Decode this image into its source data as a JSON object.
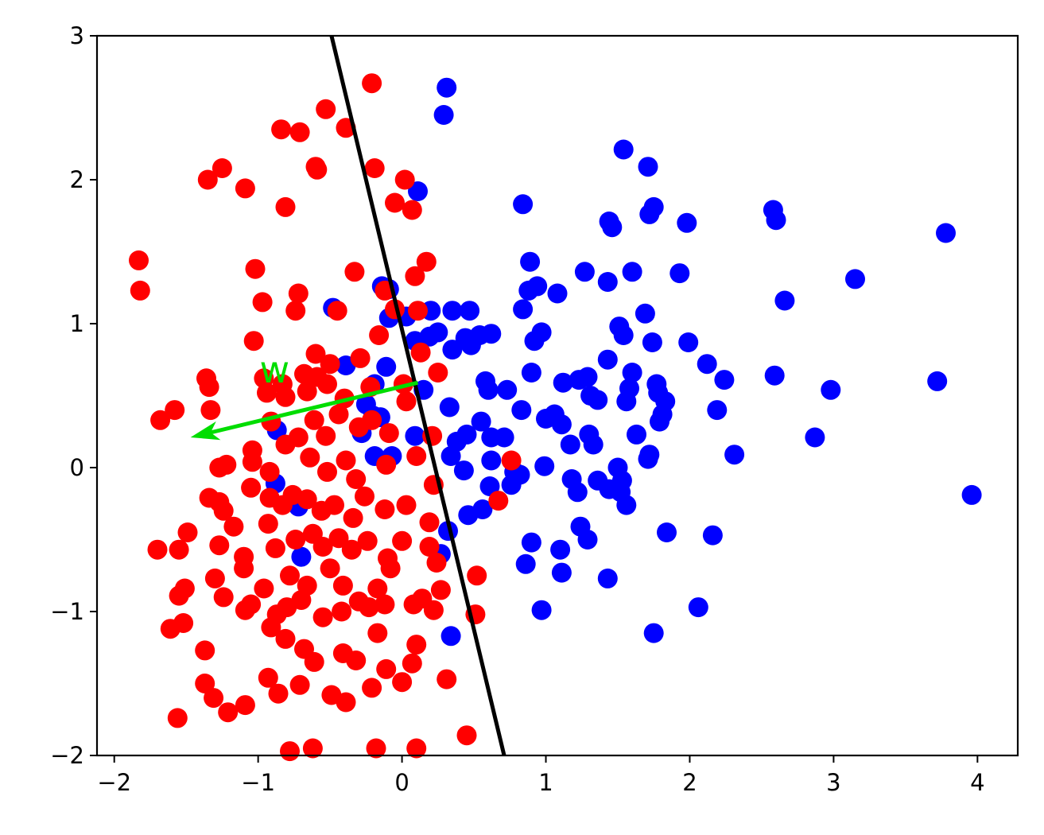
{
  "chart_data": {
    "type": "scatter",
    "title": "",
    "xlabel": "",
    "ylabel": "",
    "xlim": [
      -2.12,
      4.28
    ],
    "ylim": [
      -2,
      3
    ],
    "xticks": [
      -2,
      -1,
      0,
      1,
      2,
      3,
      4
    ],
    "yticks": [
      -2,
      -1,
      0,
      1,
      2,
      3
    ],
    "xtick_labels": [
      "−2",
      "−1",
      "0",
      "1",
      "2",
      "3",
      "4"
    ],
    "ytick_labels": [
      "−2",
      "−1",
      "0",
      "1",
      "2",
      "3"
    ],
    "grid": false,
    "series": [
      {
        "color": "#0000ff",
        "points": [
          [
            0.31,
            2.64
          ],
          [
            0.29,
            2.45
          ],
          [
            0.11,
            1.92
          ],
          [
            0.84,
            1.83
          ],
          [
            1.54,
            2.21
          ],
          [
            1.71,
            2.09
          ],
          [
            1.44,
            1.71
          ],
          [
            1.46,
            1.67
          ],
          [
            1.72,
            1.76
          ],
          [
            1.75,
            1.81
          ],
          [
            1.98,
            1.7
          ],
          [
            2.58,
            1.79
          ],
          [
            2.6,
            1.72
          ],
          [
            3.78,
            1.63
          ],
          [
            0.89,
            1.43
          ],
          [
            1.27,
            1.36
          ],
          [
            1.43,
            1.29
          ],
          [
            1.6,
            1.36
          ],
          [
            1.93,
            1.35
          ],
          [
            3.15,
            1.31
          ],
          [
            0.88,
            1.23
          ],
          [
            0.94,
            1.26
          ],
          [
            1.08,
            1.21
          ],
          [
            2.66,
            1.16
          ],
          [
            0.84,
            1.1
          ],
          [
            1.69,
            1.07
          ],
          [
            0.35,
            1.09
          ],
          [
            0.47,
            1.09
          ],
          [
            0.2,
            1.09
          ],
          [
            0.03,
            1.05
          ],
          [
            -0.48,
            1.11
          ],
          [
            -0.09,
            1.24
          ],
          [
            -0.14,
            1.26
          ],
          [
            -0.09,
            1.04
          ],
          [
            0.19,
            0.91
          ],
          [
            0.25,
            0.94
          ],
          [
            0.54,
            0.92
          ],
          [
            0.62,
            0.93
          ],
          [
            0.44,
            0.9
          ],
          [
            0.48,
            0.85
          ],
          [
            0.35,
            0.82
          ],
          [
            0.97,
            0.94
          ],
          [
            0.92,
            0.88
          ],
          [
            1.51,
            0.98
          ],
          [
            1.54,
            0.92
          ],
          [
            1.74,
            0.87
          ],
          [
            1.99,
            0.87
          ],
          [
            1.43,
            0.75
          ],
          [
            0.09,
            0.88
          ],
          [
            -0.11,
            0.7
          ],
          [
            -0.39,
            0.71
          ],
          [
            0.9,
            0.66
          ],
          [
            1.6,
            0.66
          ],
          [
            2.12,
            0.72
          ],
          [
            2.24,
            0.61
          ],
          [
            2.59,
            0.64
          ],
          [
            3.72,
            0.6
          ],
          [
            2.98,
            0.54
          ],
          [
            0.58,
            0.6
          ],
          [
            0.6,
            0.54
          ],
          [
            0.73,
            0.54
          ],
          [
            1.12,
            0.59
          ],
          [
            1.23,
            0.61
          ],
          [
            1.29,
            0.63
          ],
          [
            1.31,
            0.5
          ],
          [
            1.36,
            0.47
          ],
          [
            1.58,
            0.55
          ],
          [
            1.56,
            0.46
          ],
          [
            1.77,
            0.58
          ],
          [
            1.78,
            0.52
          ],
          [
            1.83,
            0.46
          ],
          [
            2.19,
            0.4
          ],
          [
            1.81,
            0.37
          ],
          [
            1.79,
            0.32
          ],
          [
            -0.19,
            0.58
          ],
          [
            0.15,
            0.54
          ],
          [
            0.33,
            0.42
          ],
          [
            0.83,
            0.4
          ],
          [
            -0.25,
            0.44
          ],
          [
            -0.2,
            0.36
          ],
          [
            -0.15,
            0.35
          ],
          [
            -0.28,
            0.24
          ],
          [
            -0.19,
            0.08
          ],
          [
            -0.07,
            0.08
          ],
          [
            0.09,
            0.22
          ],
          [
            0.55,
            0.32
          ],
          [
            0.45,
            0.23
          ],
          [
            0.38,
            0.18
          ],
          [
            0.62,
            0.21
          ],
          [
            0.71,
            0.21
          ],
          [
            1.0,
            0.34
          ],
          [
            1.06,
            0.37
          ],
          [
            1.11,
            0.3
          ],
          [
            1.17,
            0.16
          ],
          [
            1.3,
            0.23
          ],
          [
            1.33,
            0.16
          ],
          [
            1.63,
            0.23
          ],
          [
            1.72,
            0.09
          ],
          [
            1.71,
            0.06
          ],
          [
            2.31,
            0.09
          ],
          [
            2.87,
            0.21
          ],
          [
            0.34,
            0.08
          ],
          [
            0.43,
            -0.02
          ],
          [
            0.62,
            0.05
          ],
          [
            0.78,
            -0.03
          ],
          [
            0.82,
            -0.05
          ],
          [
            0.99,
            0.01
          ],
          [
            1.5,
            0.0
          ],
          [
            1.36,
            -0.09
          ],
          [
            1.44,
            -0.15
          ],
          [
            1.52,
            -0.17
          ],
          [
            1.53,
            -0.09
          ],
          [
            1.56,
            -0.26
          ],
          [
            1.18,
            -0.08
          ],
          [
            1.22,
            -0.17
          ],
          [
            0.61,
            -0.13
          ],
          [
            0.76,
            -0.12
          ],
          [
            0.46,
            -0.33
          ],
          [
            0.56,
            -0.29
          ],
          [
            -0.88,
            -0.11
          ],
          [
            -0.87,
            0.26
          ],
          [
            -0.72,
            -0.27
          ],
          [
            -0.7,
            -0.62
          ],
          [
            0.32,
            -0.44
          ],
          [
            0.27,
            -0.6
          ],
          [
            0.9,
            -0.52
          ],
          [
            0.86,
            -0.67
          ],
          [
            1.1,
            -0.57
          ],
          [
            1.11,
            -0.73
          ],
          [
            1.24,
            -0.41
          ],
          [
            1.29,
            -0.5
          ],
          [
            1.43,
            -0.77
          ],
          [
            1.84,
            -0.45
          ],
          [
            2.16,
            -0.47
          ],
          [
            3.96,
            -0.19
          ],
          [
            0.97,
            -0.99
          ],
          [
            2.06,
            -0.97
          ],
          [
            1.75,
            -1.15
          ],
          [
            0.34,
            -1.17
          ]
        ]
      },
      {
        "color": "#ff0000",
        "points": [
          [
            -0.21,
            2.67
          ],
          [
            -0.53,
            2.49
          ],
          [
            -0.84,
            2.35
          ],
          [
            -0.71,
            2.33
          ],
          [
            -0.39,
            2.36
          ],
          [
            -1.35,
            2.0
          ],
          [
            -1.25,
            2.08
          ],
          [
            -0.6,
            2.09
          ],
          [
            -0.59,
            2.07
          ],
          [
            -0.19,
            2.08
          ],
          [
            -1.09,
            1.94
          ],
          [
            0.02,
            2.0
          ],
          [
            -0.81,
            1.81
          ],
          [
            -0.05,
            1.84
          ],
          [
            0.07,
            1.79
          ],
          [
            -1.83,
            1.44
          ],
          [
            -1.82,
            1.23
          ],
          [
            -1.02,
            1.38
          ],
          [
            -0.33,
            1.36
          ],
          [
            0.17,
            1.43
          ],
          [
            0.09,
            1.33
          ],
          [
            -0.72,
            1.21
          ],
          [
            -0.97,
            1.15
          ],
          [
            -0.74,
            1.09
          ],
          [
            -0.45,
            1.09
          ],
          [
            -0.12,
            1.23
          ],
          [
            -1.03,
            0.88
          ],
          [
            -0.6,
            0.79
          ],
          [
            -0.5,
            0.72
          ],
          [
            -0.29,
            0.76
          ],
          [
            -0.16,
            0.92
          ],
          [
            -0.05,
            1.1
          ],
          [
            0.11,
            1.09
          ],
          [
            0.13,
            0.8
          ],
          [
            -1.36,
            0.62
          ],
          [
            -1.34,
            0.56
          ],
          [
            -0.96,
            0.62
          ],
          [
            -0.83,
            0.58
          ],
          [
            -0.68,
            0.65
          ],
          [
            -0.59,
            0.63
          ],
          [
            -0.52,
            0.58
          ],
          [
            -0.94,
            0.52
          ],
          [
            -0.81,
            0.49
          ],
          [
            -0.66,
            0.53
          ],
          [
            -0.4,
            0.48
          ],
          [
            -0.22,
            0.56
          ],
          [
            0.01,
            0.58
          ],
          [
            0.03,
            0.46
          ],
          [
            0.25,
            0.66
          ],
          [
            -1.58,
            0.4
          ],
          [
            -1.68,
            0.33
          ],
          [
            -1.33,
            0.4
          ],
          [
            -1.04,
            0.12
          ],
          [
            -0.91,
            0.32
          ],
          [
            -0.81,
            0.16
          ],
          [
            -0.72,
            0.21
          ],
          [
            -0.61,
            0.33
          ],
          [
            -0.53,
            0.22
          ],
          [
            -0.44,
            0.37
          ],
          [
            -0.3,
            0.28
          ],
          [
            -0.21,
            0.33
          ],
          [
            -0.09,
            0.24
          ],
          [
            0.21,
            0.22
          ],
          [
            -1.27,
            0.0
          ],
          [
            -1.22,
            0.02
          ],
          [
            -1.04,
            0.04
          ],
          [
            -0.92,
            -0.03
          ],
          [
            -0.64,
            0.07
          ],
          [
            -0.52,
            -0.03
          ],
          [
            -0.39,
            0.05
          ],
          [
            -0.32,
            -0.08
          ],
          [
            -0.11,
            0.02
          ],
          [
            0.1,
            0.08
          ],
          [
            0.22,
            -0.12
          ],
          [
            0.76,
            0.05
          ],
          [
            0.67,
            -0.23
          ],
          [
            -1.34,
            -0.21
          ],
          [
            -1.27,
            -0.24
          ],
          [
            -1.24,
            -0.3
          ],
          [
            -1.05,
            -0.14
          ],
          [
            -0.92,
            -0.21
          ],
          [
            -0.83,
            -0.26
          ],
          [
            -0.76,
            -0.19
          ],
          [
            -0.66,
            -0.22
          ],
          [
            -0.56,
            -0.3
          ],
          [
            -0.47,
            -0.26
          ],
          [
            -0.34,
            -0.35
          ],
          [
            -0.26,
            -0.2
          ],
          [
            -0.12,
            -0.29
          ],
          [
            0.03,
            -0.26
          ],
          [
            -1.49,
            -0.45
          ],
          [
            -1.7,
            -0.57
          ],
          [
            -1.55,
            -0.57
          ],
          [
            -1.27,
            -0.54
          ],
          [
            -1.17,
            -0.41
          ],
          [
            -0.93,
            -0.39
          ],
          [
            -0.88,
            -0.56
          ],
          [
            -0.74,
            -0.5
          ],
          [
            -0.62,
            -0.46
          ],
          [
            -0.55,
            -0.55
          ],
          [
            -0.44,
            -0.49
          ],
          [
            -0.35,
            -0.57
          ],
          [
            -0.24,
            -0.51
          ],
          [
            -0.1,
            -0.63
          ],
          [
            0.0,
            -0.51
          ],
          [
            0.19,
            -0.38
          ],
          [
            0.19,
            -0.55
          ],
          [
            0.24,
            -0.66
          ],
          [
            -1.1,
            -0.62
          ],
          [
            -1.1,
            -0.7
          ],
          [
            -0.96,
            -0.84
          ],
          [
            -0.78,
            -0.75
          ],
          [
            -0.66,
            -0.82
          ],
          [
            -0.5,
            -0.7
          ],
          [
            -0.41,
            -0.82
          ],
          [
            -0.3,
            -0.93
          ],
          [
            -0.17,
            -0.84
          ],
          [
            -0.08,
            -0.7
          ],
          [
            0.14,
            -0.91
          ],
          [
            0.27,
            -0.85
          ],
          [
            0.52,
            -0.75
          ],
          [
            -1.51,
            -0.84
          ],
          [
            -1.55,
            -0.89
          ],
          [
            -1.3,
            -0.77
          ],
          [
            -1.24,
            -0.9
          ],
          [
            -1.09,
            -0.99
          ],
          [
            -1.05,
            -0.95
          ],
          [
            -0.87,
            -1.02
          ],
          [
            -0.8,
            -0.97
          ],
          [
            -0.7,
            -0.92
          ],
          [
            -0.55,
            -1.04
          ],
          [
            -0.42,
            -1.0
          ],
          [
            -0.23,
            -0.97
          ],
          [
            -0.12,
            -0.95
          ],
          [
            0.08,
            -0.95
          ],
          [
            0.22,
            -0.99
          ],
          [
            0.51,
            -1.02
          ],
          [
            -1.61,
            -1.12
          ],
          [
            -1.52,
            -1.08
          ],
          [
            -1.37,
            -1.27
          ],
          [
            -0.91,
            -1.11
          ],
          [
            -0.81,
            -1.19
          ],
          [
            -0.68,
            -1.26
          ],
          [
            -0.41,
            -1.29
          ],
          [
            -0.32,
            -1.34
          ],
          [
            -0.17,
            -1.15
          ],
          [
            0.1,
            -1.23
          ],
          [
            -1.37,
            -1.5
          ],
          [
            -1.31,
            -1.6
          ],
          [
            -1.21,
            -1.7
          ],
          [
            -1.09,
            -1.65
          ],
          [
            -0.93,
            -1.46
          ],
          [
            -0.86,
            -1.57
          ],
          [
            -0.71,
            -1.51
          ],
          [
            -0.61,
            -1.35
          ],
          [
            -0.49,
            -1.58
          ],
          [
            -0.39,
            -1.63
          ],
          [
            -0.21,
            -1.53
          ],
          [
            -0.11,
            -1.4
          ],
          [
            0.0,
            -1.49
          ],
          [
            0.07,
            -1.36
          ],
          [
            0.31,
            -1.47
          ],
          [
            -1.56,
            -1.74
          ],
          [
            -0.78,
            -1.97
          ],
          [
            -0.62,
            -1.95
          ],
          [
            -0.18,
            -1.95
          ],
          [
            0.1,
            -1.95
          ],
          [
            0.45,
            -1.86
          ]
        ]
      }
    ],
    "decision_boundary": {
      "color": "#000000",
      "x": [
        -0.49,
        0.71
      ],
      "y": [
        3,
        -2
      ]
    },
    "weight_vector": {
      "label": "w",
      "color": "#00dd00",
      "from": [
        0.11,
        0.59
      ],
      "to": [
        -1.47,
        0.21
      ]
    }
  }
}
